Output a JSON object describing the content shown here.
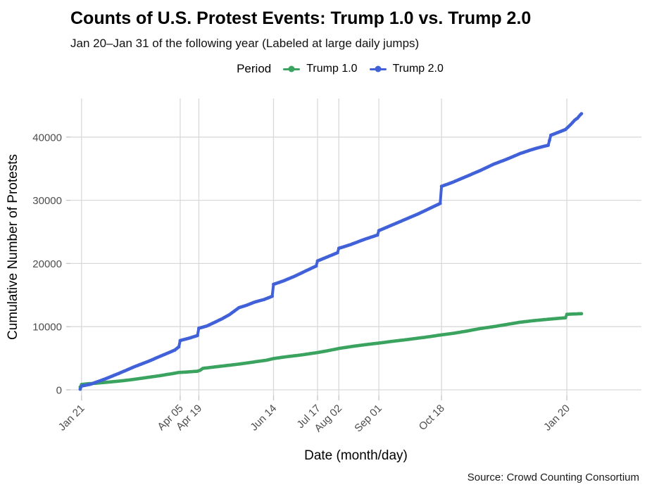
{
  "header": {
    "title": "Counts of U.S. Protest Events: Trump 1.0 vs. Trump 2.0",
    "subtitle": "Jan 20–Jan 31 of the following year (Labeled at large daily jumps)"
  },
  "legend": {
    "title": "Period",
    "items": [
      {
        "label": "Trump 1.0",
        "color": "#3aa35f"
      },
      {
        "label": "Trump 2.0",
        "color": "#4161d8"
      }
    ]
  },
  "caption": "Source: Crowd Counting Consortium",
  "chart_data": {
    "type": "line",
    "title": "Counts of U.S. Protest Events: Trump 1.0 vs. Trump 2.0",
    "subtitle": "Jan 20–Jan 31 of the following year (Labeled at large daily jumps)",
    "xlabel": "Date (month/day)",
    "ylabel": "Cumulative Number of Protests",
    "x_unit": "days since Jan 20",
    "xlim_days": [
      0,
      376
    ],
    "ylim": [
      -800,
      46500
    ],
    "grid": true,
    "legend_position": "top",
    "x_ticks": [
      {
        "label": "Jan 21",
        "day": 1
      },
      {
        "label": "Apr 05",
        "day": 75
      },
      {
        "label": "Apr 19",
        "day": 89
      },
      {
        "label": "Jun 14",
        "day": 145
      },
      {
        "label": "Jul 17",
        "day": 178
      },
      {
        "label": "Aug 02",
        "day": 194
      },
      {
        "label": "Sep 01",
        "day": 224
      },
      {
        "label": "Oct 18",
        "day": 271
      },
      {
        "label": "Jan 20",
        "day": 365
      }
    ],
    "y_ticks": [
      0,
      10000,
      20000,
      30000,
      40000
    ],
    "series": [
      {
        "name": "Trump 1.0",
        "color": "#3aa35f",
        "points": [
          [
            0,
            450
          ],
          [
            1,
            850
          ],
          [
            5,
            950
          ],
          [
            12,
            1050
          ],
          [
            20,
            1200
          ],
          [
            30,
            1400
          ],
          [
            40,
            1650
          ],
          [
            50,
            1950
          ],
          [
            60,
            2250
          ],
          [
            70,
            2600
          ],
          [
            74,
            2750
          ],
          [
            80,
            2820
          ],
          [
            88,
            2950
          ],
          [
            90,
            3100
          ],
          [
            92,
            3400
          ],
          [
            100,
            3600
          ],
          [
            110,
            3850
          ],
          [
            120,
            4100
          ],
          [
            130,
            4400
          ],
          [
            140,
            4700
          ],
          [
            145,
            4950
          ],
          [
            155,
            5250
          ],
          [
            165,
            5500
          ],
          [
            178,
            5900
          ],
          [
            186,
            6200
          ],
          [
            194,
            6550
          ],
          [
            205,
            6900
          ],
          [
            214,
            7150
          ],
          [
            224,
            7400
          ],
          [
            235,
            7700
          ],
          [
            245,
            7950
          ],
          [
            258,
            8300
          ],
          [
            271,
            8700
          ],
          [
            280,
            8950
          ],
          [
            290,
            9300
          ],
          [
            300,
            9700
          ],
          [
            310,
            10000
          ],
          [
            320,
            10350
          ],
          [
            330,
            10700
          ],
          [
            340,
            10950
          ],
          [
            350,
            11150
          ],
          [
            358,
            11300
          ],
          [
            364,
            11400
          ],
          [
            365,
            11950
          ],
          [
            370,
            12000
          ],
          [
            376,
            12050
          ]
        ]
      },
      {
        "name": "Trump 2.0",
        "color": "#4161d8",
        "points": [
          [
            0,
            100
          ],
          [
            1,
            600
          ],
          [
            8,
            900
          ],
          [
            19,
            1750
          ],
          [
            29,
            2600
          ],
          [
            40,
            3600
          ],
          [
            51,
            4500
          ],
          [
            61,
            5400
          ],
          [
            71,
            6300
          ],
          [
            74,
            6800
          ],
          [
            75,
            7800
          ],
          [
            82,
            8200
          ],
          [
            88,
            8600
          ],
          [
            89,
            9750
          ],
          [
            95,
            10100
          ],
          [
            100,
            10600
          ],
          [
            106,
            11200
          ],
          [
            112,
            11900
          ],
          [
            119,
            13000
          ],
          [
            125,
            13400
          ],
          [
            131,
            13900
          ],
          [
            138,
            14300
          ],
          [
            144,
            14800
          ],
          [
            145,
            16700
          ],
          [
            152,
            17200
          ],
          [
            160,
            17900
          ],
          [
            168,
            18700
          ],
          [
            177,
            19600
          ],
          [
            178,
            20400
          ],
          [
            185,
            21000
          ],
          [
            193,
            21700
          ],
          [
            194,
            22400
          ],
          [
            203,
            23000
          ],
          [
            213,
            23800
          ],
          [
            223,
            24500
          ],
          [
            224,
            25200
          ],
          [
            233,
            26000
          ],
          [
            243,
            26900
          ],
          [
            253,
            27800
          ],
          [
            263,
            28800
          ],
          [
            270,
            29500
          ],
          [
            271,
            32200
          ],
          [
            280,
            32900
          ],
          [
            290,
            33800
          ],
          [
            300,
            34700
          ],
          [
            310,
            35700
          ],
          [
            320,
            36500
          ],
          [
            330,
            37400
          ],
          [
            340,
            38100
          ],
          [
            347,
            38500
          ],
          [
            351,
            38700
          ],
          [
            353,
            40300
          ],
          [
            358,
            40700
          ],
          [
            364,
            41200
          ],
          [
            365,
            41400
          ],
          [
            368,
            42000
          ],
          [
            371,
            42700
          ],
          [
            373,
            43000
          ],
          [
            375,
            43500
          ],
          [
            376,
            43700
          ]
        ]
      }
    ]
  }
}
